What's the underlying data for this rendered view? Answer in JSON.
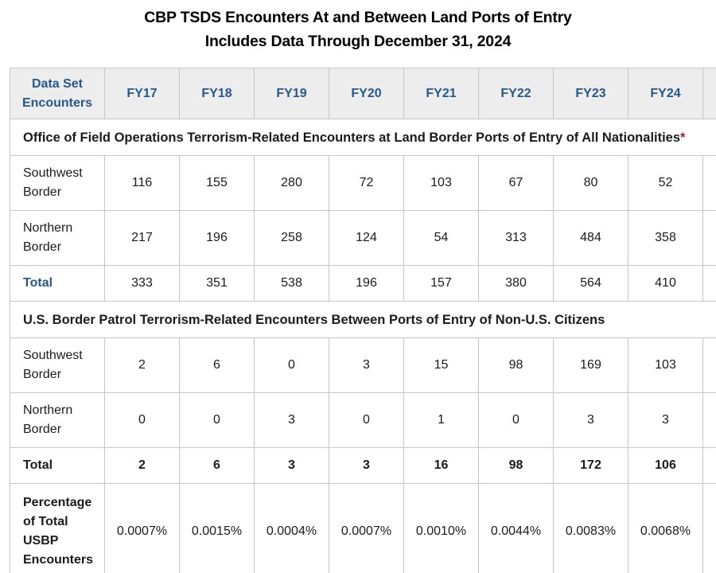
{
  "title": {
    "line1": "CBP TSDS Encounters At and Between Land Ports of Entry",
    "line2": "Includes Data Through December 31, 2024"
  },
  "chart_data": {
    "type": "table",
    "title": "CBP TSDS Encounters At and Between Land Ports of Entry",
    "subtitle": "Includes Data Through December 31, 2024",
    "header": {
      "label": "Data Set Encounters",
      "years": [
        "FY17",
        "FY18",
        "FY19",
        "FY20",
        "FY21",
        "FY22",
        "FY23",
        "FY24"
      ]
    },
    "sections": [
      {
        "heading": "Office of Field Operations Terrorism-Related Encounters at Land Border Ports of Entry of All Nationalities",
        "asterisk": "*",
        "rows": [
          {
            "label": "Southwest Border",
            "style": "data",
            "values": [
              "116",
              "155",
              "280",
              "72",
              "103",
              "67",
              "80",
              "52"
            ]
          },
          {
            "label": "Northern Border",
            "style": "data",
            "values": [
              "217",
              "196",
              "258",
              "124",
              "54",
              "313",
              "484",
              "358"
            ]
          },
          {
            "label": "Total",
            "style": "total-blue",
            "values": [
              "333",
              "351",
              "538",
              "196",
              "157",
              "380",
              "564",
              "410"
            ]
          }
        ]
      },
      {
        "heading": "U.S. Border Patrol Terrorism-Related Encounters Between Ports of Entry of Non-U.S. Citizens",
        "asterisk": "",
        "rows": [
          {
            "label": "Southwest Border",
            "style": "data",
            "values": [
              "2",
              "6",
              "0",
              "3",
              "15",
              "98",
              "169",
              "103"
            ]
          },
          {
            "label": "Northern Border",
            "style": "data",
            "values": [
              "0",
              "0",
              "3",
              "0",
              "1",
              "0",
              "3",
              "3"
            ]
          },
          {
            "label": "Total",
            "style": "total-bold",
            "values": [
              "2",
              "6",
              "3",
              "3",
              "16",
              "98",
              "172",
              "106"
            ]
          },
          {
            "label": "Percentage of Total USBP Encounters",
            "style": "percent",
            "values": [
              "0.0007%",
              "0.0015%",
              "0.0004%",
              "0.0007%",
              "0.0010%",
              "0.0044%",
              "0.0083%",
              "0.0068%"
            ]
          }
        ]
      }
    ]
  },
  "colors": {
    "header_text_blue": "#26588c",
    "total_label_blue": "#26588c",
    "asterisk_red": "#9d2235",
    "header_bg_gray": "#ededed",
    "border_gray": "#c6c6c6",
    "body_text": "#1b1b1b",
    "title_text": "#000000"
  }
}
